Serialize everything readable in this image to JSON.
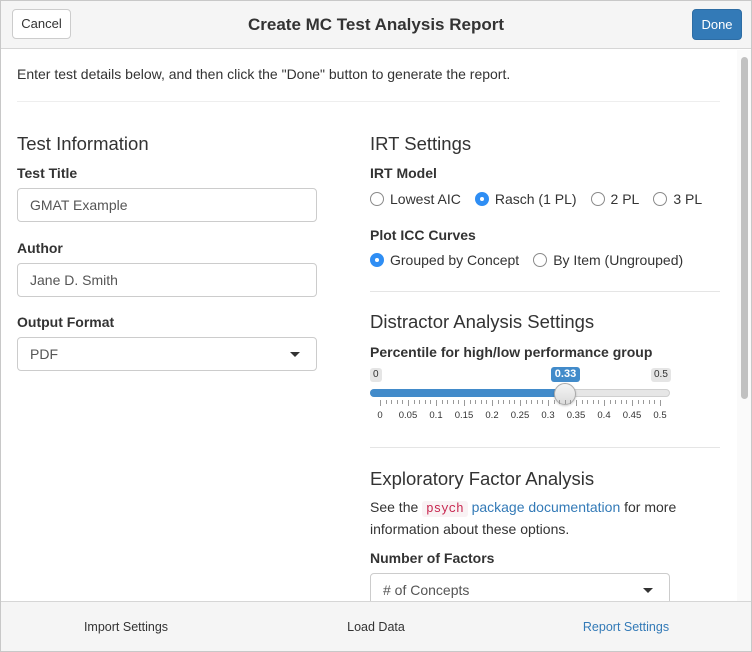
{
  "header": {
    "cancel_label": "Cancel",
    "title": "Create MC Test Analysis Report",
    "done_label": "Done"
  },
  "intro": "Enter test details below, and then click the \"Done\" button to generate the report.",
  "test_info": {
    "heading": "Test Information",
    "title_label": "Test Title",
    "title_value": "GMAT Example",
    "author_label": "Author",
    "author_value": "Jane D. Smith",
    "format_label": "Output Format",
    "format_value": "PDF"
  },
  "irt": {
    "heading": "IRT Settings",
    "model_label": "IRT Model",
    "model_options": [
      "Lowest AIC",
      "Rasch (1 PL)",
      "2 PL",
      "3 PL"
    ],
    "model_selected": "Rasch (1 PL)",
    "icc_label": "Plot ICC Curves",
    "icc_options": [
      "Grouped by Concept",
      "By Item (Ungrouped)"
    ],
    "icc_selected": "Grouped by Concept"
  },
  "distractor": {
    "heading": "Distractor Analysis Settings",
    "slider_label": "Percentile for high/low performance group",
    "min_label": "0",
    "max_label": "0.5",
    "value_label": "0.33",
    "min": 0,
    "max": 0.5,
    "value": 0.33,
    "ticks": [
      "0",
      "0.05",
      "0.1",
      "0.15",
      "0.2",
      "0.25",
      "0.3",
      "0.35",
      "0.4",
      "0.45",
      "0.5"
    ]
  },
  "efa": {
    "heading": "Exploratory Factor Analysis",
    "note_prefix": "See the ",
    "note_code": "psych",
    "note_link": "package documentation",
    "note_suffix": " for more information about these options.",
    "factors_label": "Number of Factors",
    "factors_value": "# of Concepts"
  },
  "tabs": {
    "items": [
      "Import Settings",
      "Load Data",
      "Report Settings"
    ],
    "active": "Report Settings"
  },
  "colors": {
    "accent": "#337ab7",
    "radio_checked": "#2f8ef4",
    "slider_fill": "#428bca"
  }
}
